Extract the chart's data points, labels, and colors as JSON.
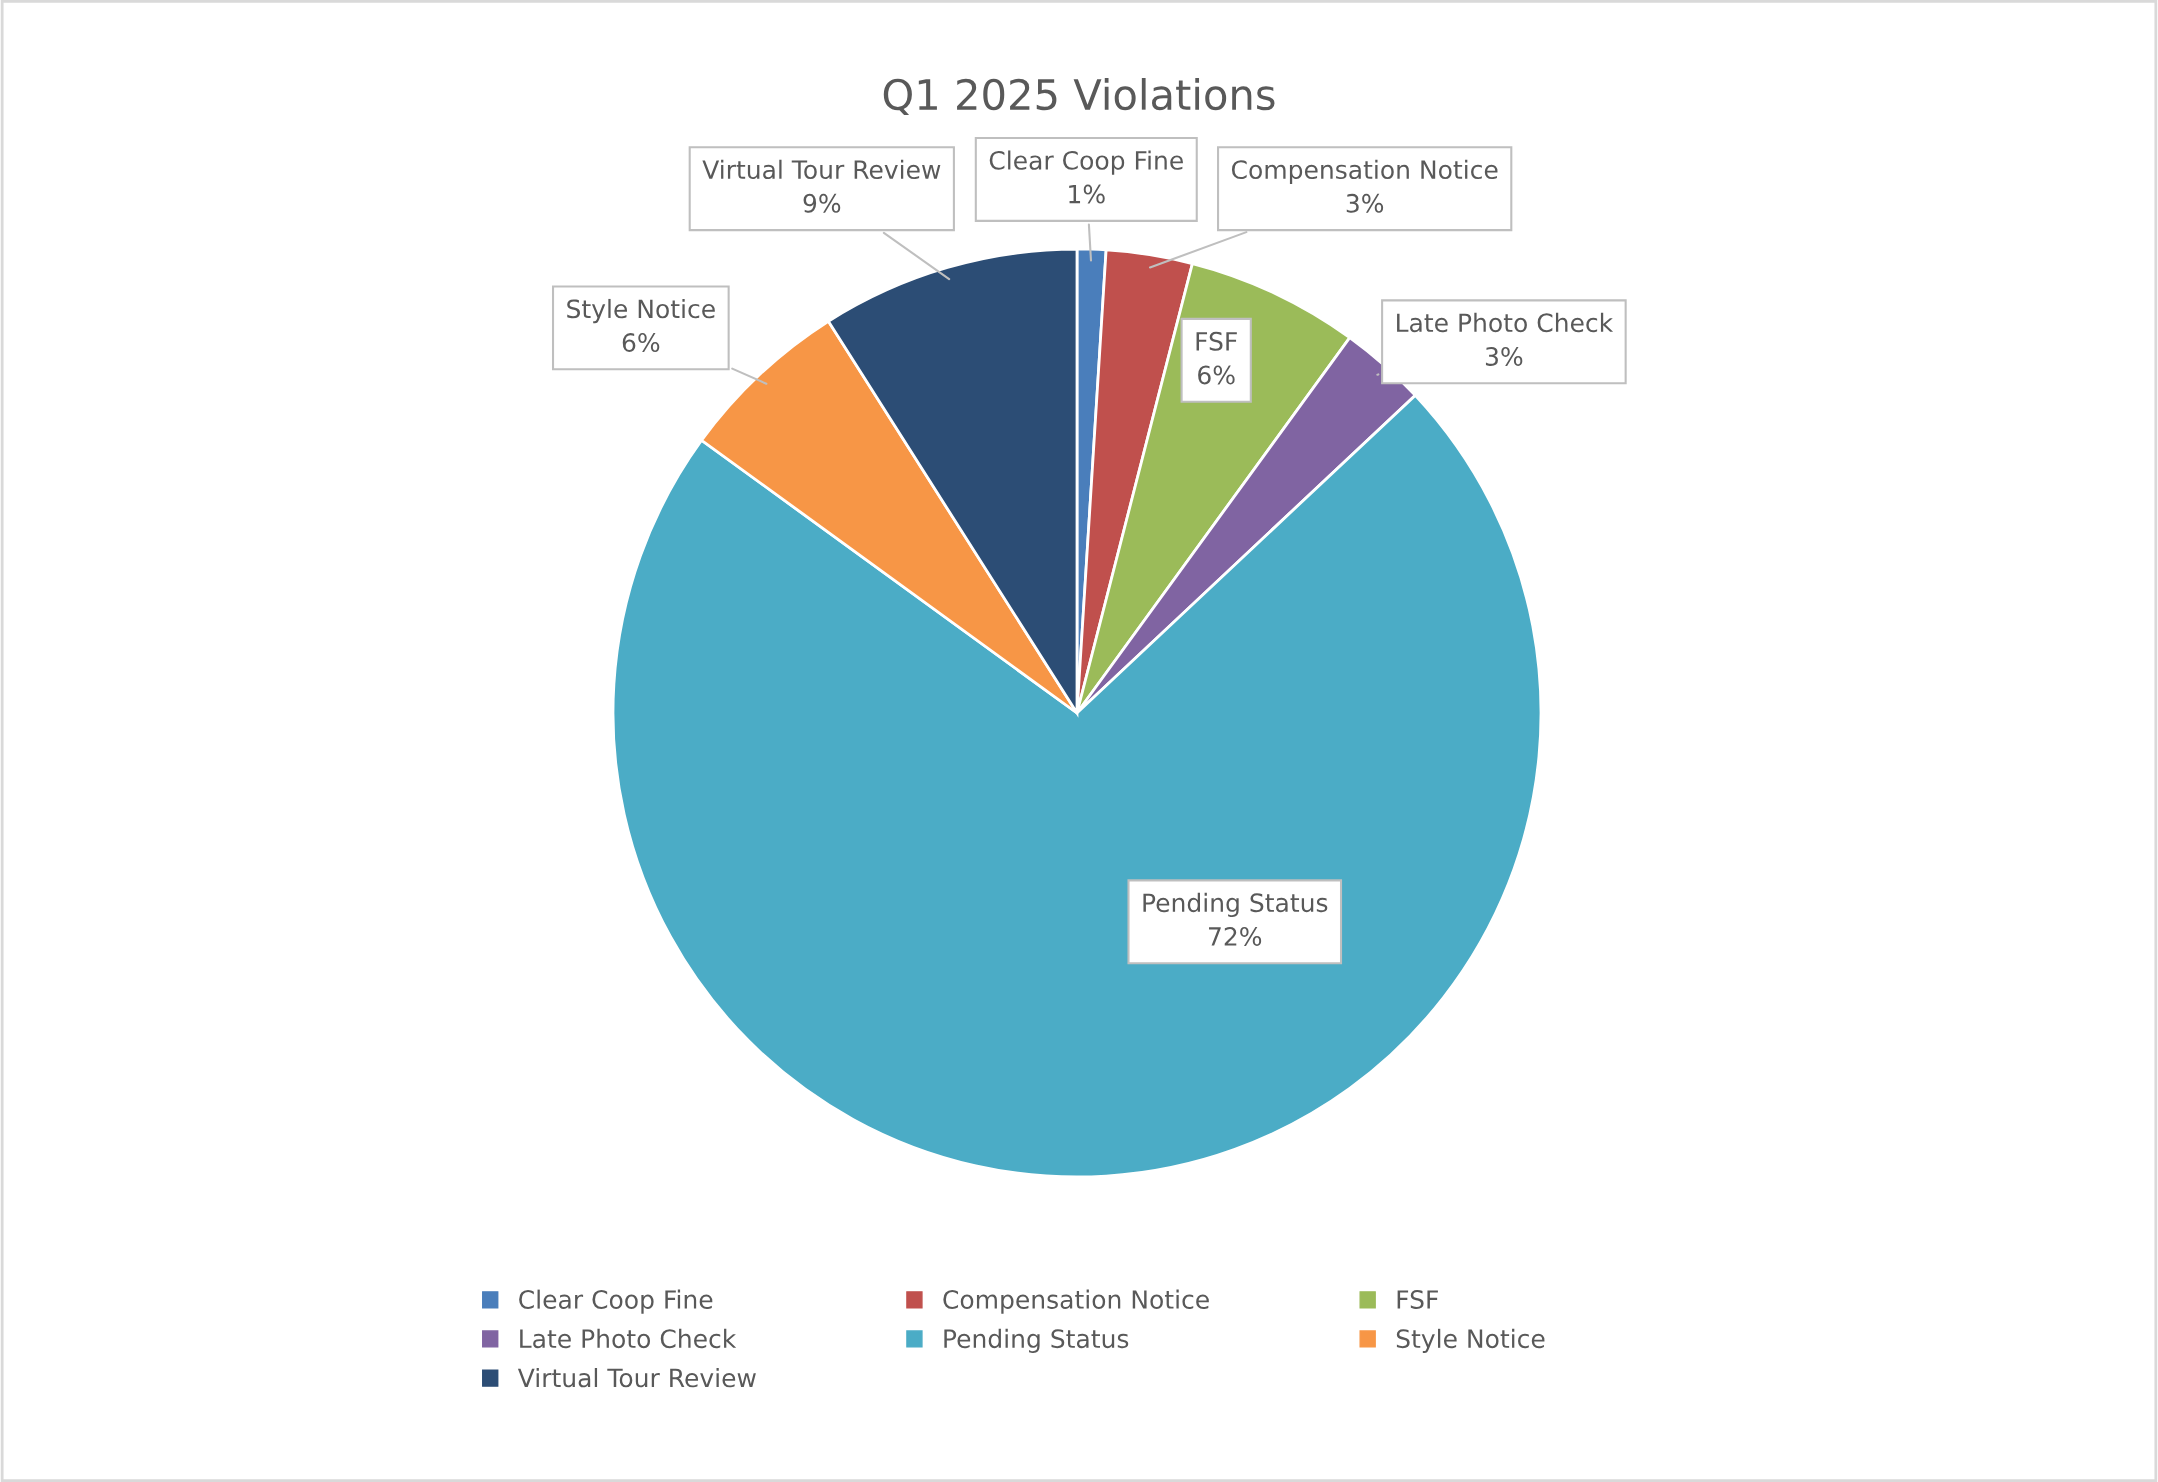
{
  "chart_data": {
    "type": "pie",
    "title": "Q1 2025 Violations",
    "categories": [
      "Clear Coop Fine",
      "Compensation Notice",
      "FSF",
      "Late Photo Check",
      "Pending Status",
      "Style Notice",
      "Virtual Tour Review"
    ],
    "values": [
      1,
      3,
      6,
      3,
      72,
      6,
      9
    ],
    "value_labels": [
      "1%",
      "3%",
      "6%",
      "3%",
      "72%",
      "6%",
      "9%"
    ],
    "colors": [
      "#4a7ebb",
      "#c0504d",
      "#9bbb59",
      "#8064a2",
      "#4bacc6",
      "#f79646",
      "#2c4d75"
    ],
    "legend": "bottom"
  }
}
